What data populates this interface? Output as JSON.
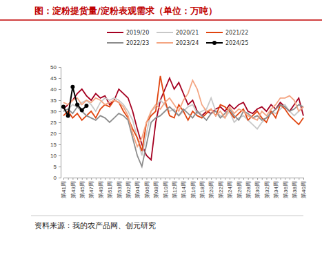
{
  "chart_data": {
    "type": "line",
    "title": "图：淀粉提货量/淀粉表观需求（单位：万吨）",
    "source": "资料来源：我的农产品网、创元研究",
    "categories": [
      "第41周",
      null,
      "第43周",
      null,
      "第45周",
      null,
      "第47周",
      null,
      "第49周",
      null,
      "第51周",
      null,
      "第53周",
      null,
      "第02周",
      null,
      "第04周",
      null,
      "第06周",
      null,
      "第08周",
      null,
      "第10周",
      null,
      "第12周",
      null,
      "第14周",
      null,
      "第16周",
      null,
      "第18周",
      null,
      "第20周",
      null,
      "第22周",
      null,
      "第24周",
      null,
      "第26周",
      null,
      "第28周",
      null,
      "第30周",
      null,
      "第32周",
      null,
      "第34周",
      null,
      "第36周",
      null,
      "第38周",
      null,
      "第40周"
    ],
    "ylim": [
      0,
      50
    ],
    "yticks": [
      0,
      5,
      10,
      15,
      20,
      25,
      30,
      35,
      40,
      45,
      50
    ],
    "grid": false,
    "legend": "top",
    "series": [
      {
        "name": "2019/20",
        "color": "#a50021",
        "values": [
          31,
          33,
          35,
          38,
          40,
          37,
          35,
          38,
          36,
          37,
          33,
          35,
          40,
          38,
          36,
          30,
          22,
          15,
          10,
          8,
          25,
          35,
          40,
          45,
          40,
          43,
          38,
          33,
          35,
          30,
          28,
          30,
          29,
          31,
          32,
          30,
          33,
          31,
          33,
          34,
          30,
          29,
          31,
          32,
          30,
          33,
          31,
          34,
          32,
          30,
          33,
          36,
          28
        ]
      },
      {
        "name": "2020/21",
        "color": "#c8c8c8",
        "values": [
          30,
          31,
          33,
          32,
          34,
          35,
          33,
          30,
          34,
          36,
          35,
          36,
          35,
          33,
          30,
          26,
          18,
          10,
          20,
          30,
          32,
          35,
          33,
          30,
          31,
          28,
          30,
          32,
          33,
          29,
          30,
          31,
          36,
          30,
          28,
          27,
          30,
          25,
          27,
          28,
          26,
          24,
          22,
          25,
          27,
          30,
          29,
          31,
          33,
          30,
          28,
          30,
          32
        ]
      },
      {
        "name": "2021/22",
        "color": "#e0440e",
        "values": [
          28,
          30,
          27,
          29,
          26,
          28,
          30,
          27,
          31,
          33,
          32,
          35,
          34,
          30,
          27,
          22,
          18,
          12,
          25,
          28,
          30,
          46,
          35,
          28,
          27,
          33,
          30,
          26,
          30,
          28,
          27,
          29,
          31,
          28,
          33,
          32,
          30,
          27,
          29,
          31,
          26,
          28,
          30,
          27,
          25,
          30,
          27,
          33,
          31,
          28,
          26,
          24,
          27
        ]
      },
      {
        "name": "2022/23",
        "color": "#8c8c8c",
        "values": [
          30,
          31,
          29,
          32,
          30,
          28,
          27,
          26,
          28,
          27,
          25,
          27,
          29,
          28,
          26,
          18,
          10,
          5,
          15,
          25,
          27,
          28,
          30,
          32,
          30,
          28,
          31,
          29,
          27,
          30,
          28,
          26,
          29,
          30,
          27,
          29,
          31,
          28,
          26,
          30,
          29,
          27,
          28,
          26,
          27,
          29,
          31,
          33,
          32,
          30,
          31,
          33,
          32
        ]
      },
      {
        "name": "2023/24",
        "color": "#f4a582",
        "values": [
          34,
          33,
          35,
          36,
          33,
          35,
          34,
          36,
          35,
          33,
          34,
          35,
          34,
          32,
          28,
          20,
          14,
          18,
          25,
          30,
          33,
          31,
          34,
          36,
          33,
          30,
          35,
          38,
          44,
          40,
          33,
          30,
          31,
          28,
          30,
          27,
          32,
          29,
          31,
          30,
          28,
          27,
          26,
          30,
          28,
          31,
          33,
          36,
          36,
          37,
          35,
          30,
          32
        ]
      },
      {
        "name": "2024/25",
        "color": "#000000",
        "marker": "circle",
        "values": [
          32,
          28,
          41,
          33,
          30.5,
          32.5,
          null,
          null,
          null,
          null,
          null,
          null,
          null,
          null,
          null,
          null,
          null,
          null,
          null,
          null,
          null,
          null,
          null,
          null,
          null,
          null,
          null,
          null,
          null,
          null,
          null,
          null,
          null,
          null,
          null,
          null,
          null,
          null,
          null,
          null,
          null,
          null,
          null,
          null,
          null,
          null,
          null,
          null,
          null,
          null,
          null,
          null,
          null
        ]
      }
    ]
  }
}
